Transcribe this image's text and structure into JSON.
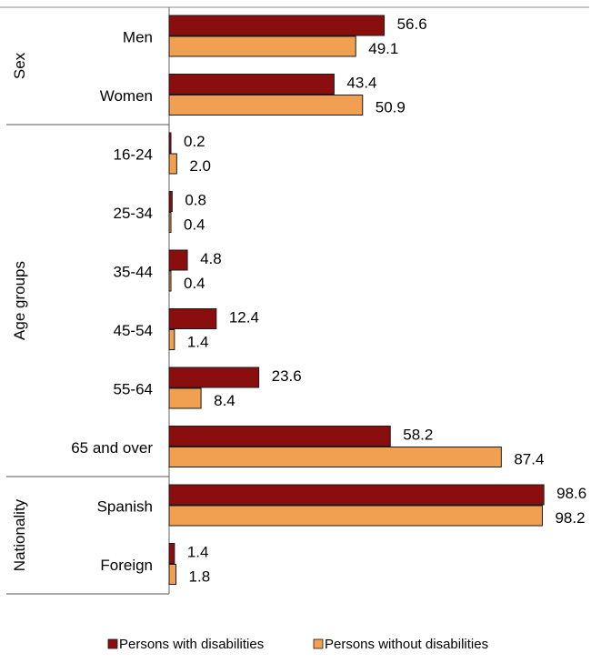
{
  "chart_data": {
    "type": "bar",
    "orientation": "horizontal",
    "title": "",
    "xlabel": "",
    "ylabel": "",
    "xlim": [
      0,
      100
    ],
    "grid": false,
    "legend_position": "bottom",
    "groups": [
      {
        "label": "Sex",
        "categories": [
          "Men",
          "Women"
        ]
      },
      {
        "label": "Age groups",
        "categories": [
          "16-24",
          "25-34",
          "35-44",
          "45-54",
          "55-64",
          "65 and over"
        ]
      },
      {
        "label": "Nationality",
        "categories": [
          "Spanish",
          "Foreign"
        ]
      }
    ],
    "categories": [
      "Men",
      "Women",
      "16-24",
      "25-34",
      "35-44",
      "45-54",
      "55-64",
      "65 and over",
      "Spanish",
      "Foreign"
    ],
    "series": [
      {
        "name": "Persons with disabilities",
        "color": "#8B0E0E",
        "values": [
          56.6,
          43.4,
          0.2,
          0.8,
          4.8,
          12.4,
          23.6,
          58.2,
          98.6,
          1.4
        ],
        "labels": [
          "56.6",
          "43.4",
          "0.2",
          "0.8",
          "4.8",
          "12.4",
          "23.6",
          "58.2",
          "98.6",
          "1.4"
        ]
      },
      {
        "name": "Persons without disabilities",
        "color": "#F0A050",
        "values": [
          49.1,
          50.9,
          2.0,
          0.4,
          0.4,
          1.4,
          8.4,
          87.4,
          98.2,
          1.8
        ],
        "labels": [
          "49.1",
          "50.9",
          "2.0",
          "0.4",
          "0.4",
          "1.4",
          "8.4",
          "87.4",
          "98.2",
          "1.8"
        ]
      }
    ]
  }
}
